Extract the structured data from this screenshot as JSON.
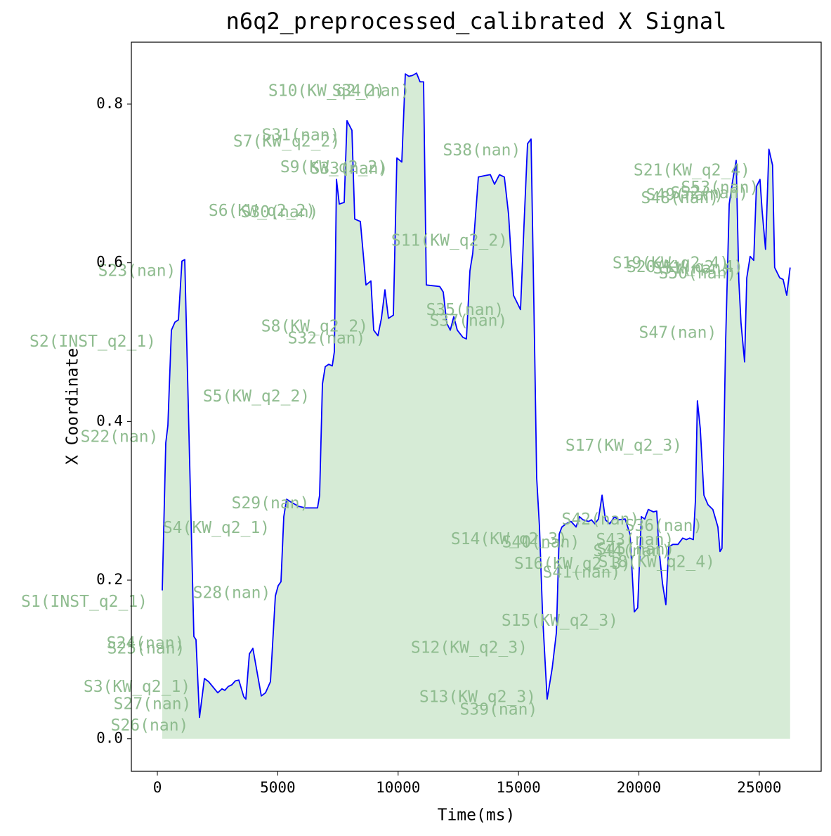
{
  "chart_data": {
    "type": "line",
    "title": "n6q2_preprocessed_calibrated X Signal",
    "xlabel": "Time(ms)",
    "ylabel": "X Coordinate",
    "xlim": [
      -1080,
      27570
    ],
    "ylim": [
      -0.041,
      0.878
    ],
    "xticks": [
      0,
      5000,
      10000,
      15000,
      20000,
      25000
    ],
    "yticks": [
      {
        "value": 0,
        "label": "0.0"
      },
      0.2,
      0.4,
      0.6,
      0.8
    ],
    "color": "blue",
    "fill_color": "green",
    "annotation_color": "#8fbc8f",
    "x": [
      204,
      350,
      437,
      583,
      729,
      875,
      1021,
      1138,
      1517,
      1604,
      1750,
      1954,
      2130,
      2509,
      2684,
      2800,
      2946,
      3092,
      3238,
      3384,
      3588,
      3676,
      3822,
      3967,
      4113,
      4317,
      4492,
      4696,
      4784,
      4901,
      5017,
      5134,
      5251,
      5368,
      5572,
      5864,
      6155,
      6651,
      6739,
      6855,
      6972,
      7118,
      7264,
      7351,
      7439,
      7555,
      7760,
      7876,
      8080,
      8197,
      8430,
      8664,
      8868,
      8985,
      9160,
      9306,
      9452,
      9598,
      9802,
      9948,
      10152,
      10298,
      10444,
      10590,
      10764,
      10910,
      11056,
      11172,
      11727,
      11873,
      12019,
      12165,
      12311,
      12456,
      12690,
      12836,
      12982,
      13099,
      13332,
      13624,
      13829,
      14004,
      14208,
      14412,
      14588,
      14792,
      14938,
      15084,
      15230,
      15376,
      15522,
      15667,
      15755,
      15872,
      16000,
      16190,
      16400,
      16575,
      16690,
      16800,
      16980,
      17180,
      17390,
      17530,
      17680,
      17910,
      18030,
      18170,
      18320,
      18470,
      18610,
      18790,
      18990,
      19140,
      19430,
      19630,
      19810,
      19950,
      20100,
      20240,
      20390,
      20600,
      20740,
      20830,
      20980,
      21120,
      21240,
      21410,
      21620,
      21820,
      21970,
      22110,
      22260,
      22350,
      22430,
      22550,
      22700,
      22870,
      23070,
      23280,
      23370,
      23450,
      23600,
      23750,
      23890,
      24040,
      24150,
      24240,
      24390,
      24480,
      24620,
      24770,
      24880,
      25030,
      25120,
      25260,
      25400,
      25550,
      25640,
      25850,
      25990,
      26140,
      26280
    ],
    "values": [
      0.187,
      0.373,
      0.395,
      0.515,
      0.525,
      0.528,
      0.602,
      0.604,
      0.129,
      0.125,
      0.027,
      0.076,
      0.072,
      0.058,
      0.063,
      0.061,
      0.066,
      0.068,
      0.073,
      0.074,
      0.053,
      0.05,
      0.107,
      0.114,
      0.089,
      0.054,
      0.058,
      0.072,
      0.118,
      0.18,
      0.193,
      0.198,
      0.28,
      0.302,
      0.298,
      0.293,
      0.291,
      0.291,
      0.307,
      0.447,
      0.469,
      0.472,
      0.47,
      0.488,
      0.705,
      0.674,
      0.676,
      0.779,
      0.767,
      0.655,
      0.652,
      0.572,
      0.577,
      0.515,
      0.508,
      0.53,
      0.566,
      0.53,
      0.534,
      0.732,
      0.727,
      0.838,
      0.835,
      0.836,
      0.839,
      0.828,
      0.828,
      0.572,
      0.57,
      0.563,
      0.524,
      0.515,
      0.532,
      0.515,
      0.506,
      0.504,
      0.59,
      0.612,
      0.708,
      0.71,
      0.711,
      0.699,
      0.711,
      0.708,
      0.661,
      0.559,
      0.55,
      0.541,
      0.648,
      0.75,
      0.756,
      0.497,
      0.329,
      0.267,
      0.156,
      0.05,
      0.089,
      0.134,
      0.258,
      0.267,
      0.271,
      0.274,
      0.267,
      0.28,
      0.276,
      0.274,
      0.276,
      0.271,
      0.277,
      0.307,
      0.276,
      0.271,
      0.28,
      0.276,
      0.277,
      0.258,
      0.16,
      0.165,
      0.28,
      0.277,
      0.289,
      0.286,
      0.287,
      0.24,
      0.196,
      0.169,
      0.242,
      0.245,
      0.245,
      0.253,
      0.251,
      0.253,
      0.251,
      0.302,
      0.426,
      0.391,
      0.307,
      0.295,
      0.289,
      0.267,
      0.236,
      0.24,
      0.497,
      0.674,
      0.703,
      0.729,
      0.577,
      0.524,
      0.475,
      0.581,
      0.608,
      0.603,
      0.696,
      0.705,
      0.665,
      0.617,
      0.743,
      0.723,
      0.594,
      0.581,
      0.579,
      0.559,
      0.594
    ],
    "annotations": [
      {
        "text": "S1(INST_q2_1)",
        "x": -3034,
        "y": 0.172
      },
      {
        "text": "S2(INST_q2_1)",
        "x": -2684,
        "y": 0.5
      },
      {
        "text": "S3(KW_q2_1)",
        "x": -846,
        "y": 0.065
      },
      {
        "text": "S4(KW_q2_1)",
        "x": 2450,
        "y": 0.265
      },
      {
        "text": "S5(KW_q2_2)",
        "x": 4113,
        "y": 0.431
      },
      {
        "text": "S6(KW_q2_2)",
        "x": 4347,
        "y": 0.665
      },
      {
        "text": "S7(KW_q2_2)",
        "x": 5368,
        "y": 0.752
      },
      {
        "text": "S8(KW_q2_2)",
        "x": 6534,
        "y": 0.519
      },
      {
        "text": "S9(KW_q2_2)",
        "x": 7322,
        "y": 0.72
      },
      {
        "text": "S10(KW_q2_2)",
        "x": 7030,
        "y": 0.816
      },
      {
        "text": "S11(KW_q2_2)",
        "x": 12135,
        "y": 0.627
      },
      {
        "text": "S12(KW_q2_3)",
        "x": 12952,
        "y": 0.114
      },
      {
        "text": "S13(KW_q2_3)",
        "x": 13302,
        "y": 0.052
      },
      {
        "text": "S14(KW_q2_3)",
        "x": 14615,
        "y": 0.251
      },
      {
        "text": "S15(KW_q2_3)",
        "x": 16715,
        "y": 0.148
      },
      {
        "text": "S16(KW_q2_3)",
        "x": 17240,
        "y": 0.22
      },
      {
        "text": "S17(KW_q2_3)",
        "x": 19370,
        "y": 0.369
      },
      {
        "text": "S18(KW_q2_4)",
        "x": 20740,
        "y": 0.222
      },
      {
        "text": "S19(KW_q2_4)",
        "x": 21325,
        "y": 0.599
      },
      {
        "text": "S20(KW_q2_4)",
        "x": 21910,
        "y": 0.594
      },
      {
        "text": "S21(KW_q2_4)",
        "x": 22200,
        "y": 0.716
      },
      {
        "text": "S22(nan)",
        "x": -1575,
        "y": 0.38
      },
      {
        "text": "S23(nan)",
        "x": -846,
        "y": 0.589
      },
      {
        "text": "S24(nan)",
        "x": -496,
        "y": 0.12
      },
      {
        "text": "S25(nan)",
        "x": -467,
        "y": 0.113
      },
      {
        "text": "S26(nan)",
        "x": -321,
        "y": 0.016
      },
      {
        "text": "S27(nan)",
        "x": -204,
        "y": 0.043
      },
      {
        "text": "S28(nan)",
        "x": 3092,
        "y": 0.183
      },
      {
        "text": "S29(nan)",
        "x": 4697,
        "y": 0.296
      },
      {
        "text": "S30(nan)",
        "x": 5076,
        "y": 0.663
      },
      {
        "text": "S31(nan)",
        "x": 5951,
        "y": 0.76
      },
      {
        "text": "S32(nan)",
        "x": 7030,
        "y": 0.504
      },
      {
        "text": "S33(nan)",
        "x": 7964,
        "y": 0.718
      },
      {
        "text": "S34(nan)",
        "x": 8868,
        "y": 0.816
      },
      {
        "text": "S35(nan)",
        "x": 12777,
        "y": 0.54
      },
      {
        "text": "S36(nan)",
        "x": 21033,
        "y": 0.268
      },
      {
        "text": "S37(nan)",
        "x": 12923,
        "y": 0.526
      },
      {
        "text": "S38(nan)",
        "x": 13477,
        "y": 0.741
      },
      {
        "text": "S39(nan)",
        "x": 14177,
        "y": 0.036
      },
      {
        "text": "S40(nan)",
        "x": 15928,
        "y": 0.247
      },
      {
        "text": "S41(nan)",
        "x": 17620,
        "y": 0.209
      },
      {
        "text": "S42(nan)",
        "x": 18407,
        "y": 0.276
      },
      {
        "text": "S43(nan)",
        "x": 19837,
        "y": 0.25
      },
      {
        "text": "S44(nan)",
        "x": 19720,
        "y": 0.236
      },
      {
        "text": "S45(nan)",
        "x": 19866,
        "y": 0.238
      },
      {
        "text": "S47(nan)",
        "x": 21616,
        "y": 0.511
      },
      {
        "text": "S48(nan)",
        "x": 21704,
        "y": 0.681
      },
      {
        "text": "S49(nan)",
        "x": 21908,
        "y": 0.685
      },
      {
        "text": "S50(nan)",
        "x": 22433,
        "y": 0.586
      },
      {
        "text": "S51(nan)",
        "x": 22200,
        "y": 0.592
      },
      {
        "text": "S52(nan)",
        "x": 22929,
        "y": 0.687
      },
      {
        "text": "S53(nan)",
        "x": 23367,
        "y": 0.694
      }
    ]
  }
}
